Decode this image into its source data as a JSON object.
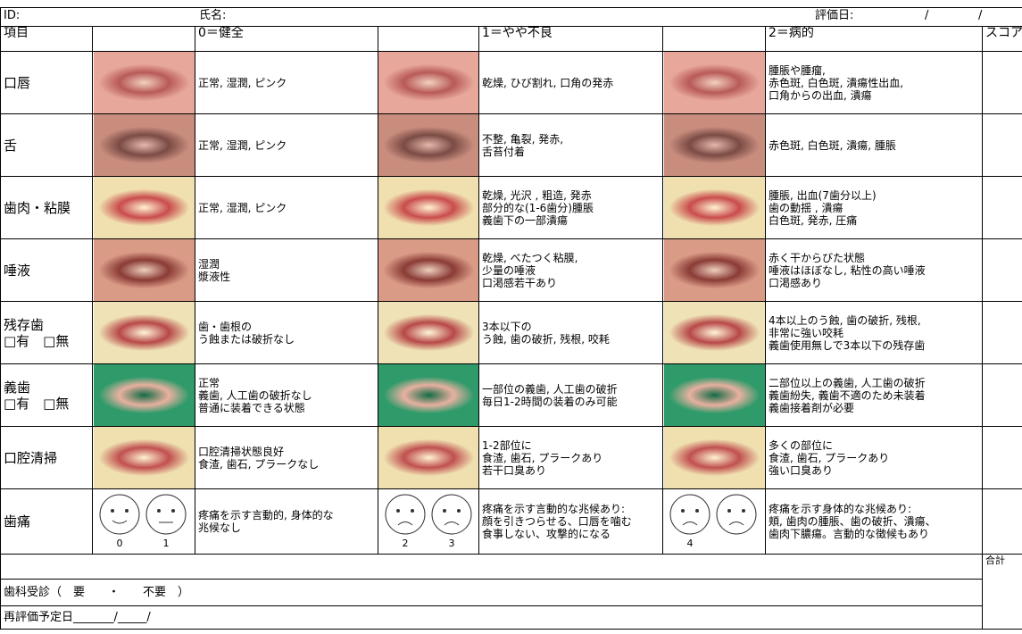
{
  "header": {
    "id_label": "ID:",
    "name_label": "氏名:",
    "date_label": "評価日:",
    "date_separators": [
      "/",
      "/"
    ]
  },
  "columns": [
    "項目",
    "0＝健全",
    "1＝やや不良",
    "2＝病的",
    "スコア"
  ],
  "rows": [
    {
      "label": [
        "口唇"
      ],
      "descriptions": [
        [
          "正常, 湿潤, ピンク"
        ],
        [
          "乾燥, ひび割れ, 口角の発赤"
        ],
        [
          "腫脹や腫瘤,",
          "赤色斑, 白色斑, 潰瘍性出血,",
          "口角からの出血, 潰瘍"
        ]
      ]
    },
    {
      "label": [
        "舌"
      ],
      "descriptions": [
        [
          "正常, 湿潤, ピンク"
        ],
        [
          "不整, 亀裂, 発赤,",
          "舌苔付着"
        ],
        [
          "赤色斑, 白色斑, 潰瘍, 腫脹"
        ]
      ]
    },
    {
      "label": [
        "歯肉・粘膜"
      ],
      "descriptions": [
        [
          "正常, 湿潤, ピンク"
        ],
        [
          "乾燥, 光沢 , 粗造, 発赤",
          "部分的な(1-6歯分)腫脹",
          "義歯下の一部潰瘍"
        ],
        [
          "腫脹, 出血(7歯分以上)",
          "歯の動揺 , 潰瘍",
          "白色斑, 発赤, 圧痛"
        ]
      ]
    },
    {
      "label": [
        "唾液"
      ],
      "descriptions": [
        [
          "湿潤",
          "漿液性"
        ],
        [
          "乾燥, べたつく粘膜,",
          "少量の唾液",
          "口渇感若干あり"
        ],
        [
          "赤く干からびた状態",
          "唾液はほぼなし, 粘性の高い唾液",
          "口渇感あり"
        ]
      ]
    },
    {
      "label": [
        "残存歯",
        "□有　□無"
      ],
      "descriptions": [
        [
          "歯・歯根の",
          "う蝕または破折なし"
        ],
        [
          "3本以下の",
          "う蝕, 歯の破折, 残根, 咬耗"
        ],
        [
          "4本以上のう蝕, 歯の破折, 残根,",
          "非常に強い咬耗",
          "義歯使用無しで3本以下の残存歯"
        ]
      ]
    },
    {
      "label": [
        "義歯",
        "□有　□無"
      ],
      "descriptions": [
        [
          "正常",
          "義歯, 人工歯の破折なし",
          "普通に装着できる状態"
        ],
        [
          "一部位の義歯, 人工歯の破折",
          "毎日1-2時間の装着のみ可能"
        ],
        [
          "二部位以上の義歯, 人工歯の破折",
          "義歯紛失, 義歯不適のため未装着",
          "義歯接着剤が必要"
        ]
      ]
    },
    {
      "label": [
        "口腔清掃"
      ],
      "descriptions": [
        [
          "口腔清掃状態良好",
          "食渣, 歯石, プラークなし"
        ],
        [
          "1-2部位に",
          "食渣, 歯石, プラークあり",
          "若干口臭あり"
        ],
        [
          "多くの部位に",
          "食渣, 歯石, プラークあり",
          "強い口臭あり"
        ]
      ]
    },
    {
      "label": [
        "歯痛"
      ],
      "descriptions": [
        [
          "疼痛を示す言動的, 身体的な",
          "兆候なし"
        ],
        [
          "疼痛を示す言動的な兆候あり:",
          "顔を引きつらせる、口唇を噛む",
          "食事しない、攻撃的になる"
        ],
        [
          "疼痛を示す身体的な兆候あり:",
          "頬, 歯肉の腫脹、歯の破折、潰瘍、",
          "歯肉下膿瘍。言動的な徴候もあり"
        ]
      ],
      "face_numbers": [
        [
          0,
          1
        ],
        [
          2,
          3
        ],
        [
          4
        ]
      ]
    }
  ],
  "footer": {
    "total_label": "合計",
    "dental_visit": "歯科受診（　要　　・　　不要　）",
    "reassessment": "再評価予定日_______/_____/"
  }
}
